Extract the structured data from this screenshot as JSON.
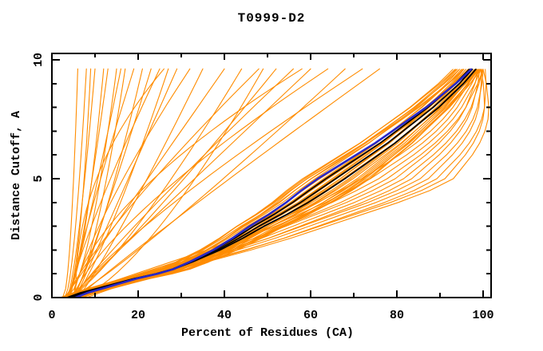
{
  "figure": {
    "background": "#ffffff",
    "description": "Cumulative distance-cutoff curves for predicted models of target T0999-D2"
  },
  "chart_data": {
    "type": "line",
    "title": "T0999-D2",
    "xlabel": "Percent of Residues (CA)",
    "ylabel": "Distance Cutoff, A",
    "xlim": [
      0,
      101.8
    ],
    "ylim": [
      0,
      10.27
    ],
    "grid": false,
    "legend": "none",
    "x_major_ticks": [
      0,
      20,
      40,
      60,
      80,
      100
    ],
    "x_minor_ticks": [
      10,
      30,
      50,
      70,
      90
    ],
    "x_tick_labels": [
      "0",
      "20",
      "40",
      "60",
      "80",
      "100"
    ],
    "y_major_ticks": [
      0,
      5,
      10
    ],
    "y_minor_ticks": [
      1,
      2,
      3,
      4,
      6,
      7,
      8,
      9
    ],
    "y_tick_labels": [
      "0",
      "5",
      "10"
    ],
    "colors": {
      "model_curves": "#ff8c00",
      "selected_curves": "#000000",
      "best_curve": "#2828c8",
      "axis": "#000000",
      "text": "#000000"
    },
    "curve_y_end": 9.62,
    "offset_knots_y": [
      0,
      4.8,
      9.6
    ],
    "bundle_base": [
      [
        0,
        4
      ],
      [
        0.2,
        7
      ],
      [
        0.4,
        11
      ],
      [
        0.6,
        15
      ],
      [
        0.8,
        19
      ],
      [
        1,
        24
      ],
      [
        1.2,
        28
      ],
      [
        1.5,
        32
      ],
      [
        2,
        38
      ],
      [
        2.5,
        43
      ],
      [
        3,
        47.5
      ],
      [
        3.5,
        52.5
      ],
      [
        4,
        57
      ],
      [
        4.5,
        61
      ],
      [
        5,
        65
      ],
      [
        5.5,
        69
      ],
      [
        6,
        73
      ],
      [
        6.5,
        77
      ],
      [
        7,
        80.5
      ],
      [
        7.5,
        84
      ],
      [
        8,
        87.5
      ],
      [
        8.5,
        90.5
      ],
      [
        9,
        93.5
      ],
      [
        9.3,
        95
      ],
      [
        9.6,
        96.5
      ]
    ],
    "bundle_offsets": [
      [
        -2,
        -6,
        -2
      ],
      [
        -1.5,
        -5,
        -1
      ],
      [
        -1,
        -4,
        -2.5
      ],
      [
        -1,
        -3,
        0
      ],
      [
        -0.5,
        -2,
        -1.5
      ],
      [
        0,
        -1,
        0.5
      ],
      [
        0.5,
        0,
        -0.5
      ],
      [
        1,
        1,
        1
      ],
      [
        1.5,
        2,
        0
      ],
      [
        2,
        3,
        1.5
      ],
      [
        -2,
        2,
        -1
      ],
      [
        2,
        -2,
        2
      ],
      [
        0,
        4,
        0.5
      ],
      [
        1,
        5,
        2
      ],
      [
        -1,
        6,
        1
      ],
      [
        0.5,
        7,
        2.5
      ],
      [
        1.5,
        8,
        1.5
      ],
      [
        -0.5,
        -7,
        -3
      ],
      [
        0,
        9,
        2
      ],
      [
        2.5,
        8.5,
        2.8
      ],
      [
        -1.5,
        -6.5,
        -3.5
      ],
      [
        3,
        7.5,
        3
      ],
      [
        1,
        -6,
        -1
      ],
      [
        2,
        9,
        2.2
      ],
      [
        -1,
        -1.5,
        -2
      ],
      [
        1.5,
        4.5,
        0.8
      ],
      [
        -2,
        0.5,
        -1.2
      ],
      [
        2.5,
        6.5,
        1.8
      ],
      [
        0,
        -5,
        -2.8
      ],
      [
        1,
        2.5,
        2.5
      ]
    ],
    "black_offsets": [
      [
        0.5,
        -1.5,
        0.3
      ],
      [
        0,
        0.8,
        1.0
      ],
      [
        -0.5,
        3,
        1.8
      ]
    ],
    "blue_offsets": [
      [
        1.5,
        -3.5,
        0.7
      ]
    ],
    "steep_curves": [
      {
        "x0": 2.5,
        "xt": 6,
        "p": 0.5
      },
      {
        "x0": 3,
        "xt": 8,
        "p": 0.6
      },
      {
        "x0": 3,
        "xt": 9,
        "p": 0.45
      },
      {
        "x0": 3.5,
        "xt": 10,
        "p": 0.7
      },
      {
        "x0": 3,
        "xt": 12,
        "p": 0.55
      },
      {
        "x0": 4,
        "xt": 13,
        "p": 0.8
      },
      {
        "x0": 3.5,
        "xt": 15,
        "p": 0.6
      },
      {
        "x0": 4,
        "xt": 16,
        "p": 0.9
      },
      {
        "x0": 4.5,
        "xt": 17,
        "p": 0.65
      },
      {
        "x0": 4,
        "xt": 19,
        "p": 1.1
      },
      {
        "x0": 4.5,
        "xt": 21,
        "p": 0.75
      },
      {
        "x0": 5,
        "xt": 23,
        "p": 0.9
      },
      {
        "x0": 4,
        "xt": 25,
        "p": 1.2
      },
      {
        "x0": 5,
        "xt": 27,
        "p": 0.8
      },
      {
        "x0": 5.5,
        "xt": 29,
        "p": 1.0
      },
      {
        "x0": 5,
        "xt": 32,
        "p": 1.3
      },
      {
        "x0": 6,
        "xt": 35,
        "p": 0.9
      },
      {
        "x0": 5.5,
        "xt": 26,
        "p": 2.2
      }
    ],
    "fan_curves": [
      {
        "x0": 3,
        "xt": 40,
        "p": 1.0
      },
      {
        "x0": 4,
        "xt": 44,
        "p": 0.8
      },
      {
        "x0": 3.5,
        "xt": 48,
        "p": 1.2
      },
      {
        "x0": 4,
        "xt": 52,
        "p": 0.9
      },
      {
        "x0": 5,
        "xt": 56,
        "p": 1.1
      },
      {
        "x0": 4,
        "xt": 60,
        "p": 1.0
      },
      {
        "x0": 5,
        "xt": 64,
        "p": 1.35
      },
      {
        "x0": 4.5,
        "xt": 68,
        "p": 0.9
      },
      {
        "x0": 5,
        "xt": 72,
        "p": 1.2
      },
      {
        "x0": 6,
        "xt": 76,
        "p": 1.05
      },
      {
        "x0": 5,
        "xt": 58,
        "p": 1.6
      },
      {
        "x0": 6,
        "xt": 49,
        "p": 0.7
      }
    ],
    "lag_base": [
      [
        0,
        5
      ],
      [
        0.5,
        11
      ],
      [
        1,
        19
      ],
      [
        1.5,
        27
      ],
      [
        2,
        35
      ],
      [
        2.5,
        42
      ],
      [
        3,
        48
      ],
      [
        3.5,
        54
      ],
      [
        4,
        60
      ],
      [
        4.5,
        65
      ],
      [
        5,
        70
      ],
      [
        5.5,
        74.5
      ],
      [
        6,
        79
      ],
      [
        6.5,
        83
      ],
      [
        7,
        86.5
      ],
      [
        7.5,
        89.5
      ],
      [
        8,
        92
      ],
      [
        8.5,
        94
      ],
      [
        9,
        96
      ],
      [
        9.6,
        98
      ]
    ],
    "lag_offsets": [
      [
        0,
        2,
        0.5
      ],
      [
        1,
        4,
        1
      ],
      [
        0,
        6,
        1.5
      ],
      [
        2,
        8,
        2
      ],
      [
        0,
        10,
        1
      ],
      [
        1,
        12,
        1.8
      ],
      [
        2,
        14,
        1.2
      ],
      [
        0,
        16,
        2
      ],
      [
        1,
        18,
        1.5
      ],
      [
        3,
        20,
        2.5
      ],
      [
        1,
        22,
        1.5
      ],
      [
        2,
        24,
        2
      ]
    ]
  }
}
